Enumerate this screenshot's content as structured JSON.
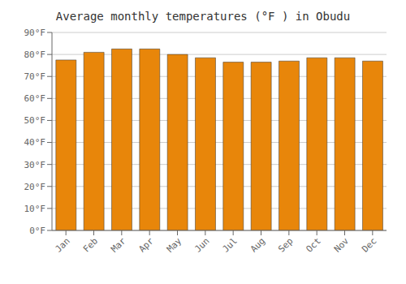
{
  "chart_data": {
    "type": "bar",
    "title": "Average monthly temperatures (°F ) in Obudu",
    "categories": [
      "Jan",
      "Feb",
      "Mar",
      "Apr",
      "May",
      "Jun",
      "Jul",
      "Aug",
      "Sep",
      "Oct",
      "Nov",
      "Dec"
    ],
    "values": [
      77.5,
      81.0,
      82.5,
      82.5,
      80.0,
      78.5,
      76.5,
      76.5,
      77.0,
      78.5,
      78.5,
      77.0
    ],
    "color": "#E8860A",
    "ylim": [
      0,
      90
    ],
    "yticks": [
      {
        "value": 0,
        "label": "0°F"
      },
      {
        "value": 10,
        "label": "10°F"
      },
      {
        "value": 20,
        "label": "20°F"
      },
      {
        "value": 30,
        "label": "30°F"
      },
      {
        "value": 40,
        "label": "40°F"
      },
      {
        "value": 50,
        "label": "50°F"
      },
      {
        "value": 60,
        "label": "60°F"
      },
      {
        "value": 70,
        "label": "70°F"
      },
      {
        "value": 80,
        "label": "80°F"
      },
      {
        "value": 90,
        "label": "90°F"
      }
    ],
    "grid": true
  }
}
